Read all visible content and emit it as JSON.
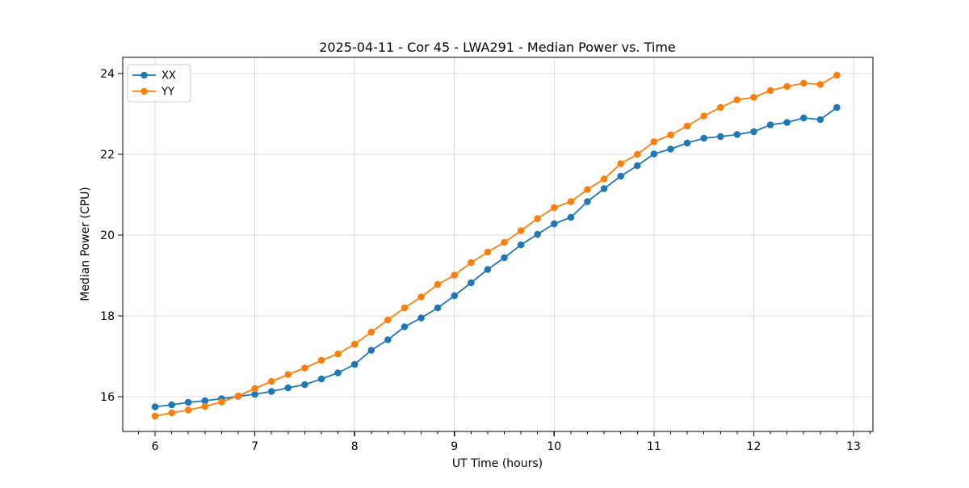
{
  "chart_data": {
    "type": "line",
    "title": "2025-04-11 - Cor 45 - LWA291 - Median Power vs. Time",
    "xlabel": "UT Time (hours)",
    "ylabel": "Median Power (CPU)",
    "legend_position": "upper-left",
    "grid": true,
    "marker": "circle",
    "xlim": [
      5.676,
      13.194
    ],
    "ylim": [
      15.14,
      24.4
    ],
    "x_major_ticks": [
      6,
      7,
      8,
      9,
      10,
      11,
      12,
      13
    ],
    "x_minor_step_hours": 0.16667,
    "y_major_ticks": [
      16,
      18,
      20,
      22,
      24
    ],
    "x": [
      6,
      6.167,
      6.333,
      6.5,
      6.667,
      6.833,
      7,
      7.167,
      7.333,
      7.5,
      7.667,
      7.833,
      8,
      8.167,
      8.333,
      8.5,
      8.667,
      8.833,
      9,
      9.167,
      9.333,
      9.5,
      9.667,
      9.833,
      10,
      10.167,
      10.333,
      10.5,
      10.667,
      10.833,
      11,
      11.167,
      11.333,
      11.5,
      11.667,
      11.833,
      12,
      12.167,
      12.333,
      12.5,
      12.667,
      12.833
    ],
    "series": [
      {
        "name": "XX",
        "color": "#1f77b4",
        "values": [
          15.75,
          15.8,
          15.86,
          15.9,
          15.95,
          16.01,
          16.06,
          16.13,
          16.22,
          16.3,
          16.44,
          16.59,
          16.8,
          17.15,
          17.41,
          17.73,
          17.95,
          18.2,
          18.5,
          18.82,
          19.15,
          19.44,
          19.76,
          20.02,
          20.28,
          20.44,
          20.83,
          21.15,
          21.46,
          21.72,
          22.01,
          22.13,
          22.28,
          22.4,
          22.44,
          22.49,
          22.56,
          22.73,
          22.79,
          22.9,
          22.86,
          23.16
        ]
      },
      {
        "name": "YY",
        "color": "#ff7f0e",
        "values": [
          15.52,
          15.6,
          15.67,
          15.76,
          15.87,
          16.02,
          16.2,
          16.38,
          16.55,
          16.71,
          16.9,
          17.06,
          17.3,
          17.6,
          17.9,
          18.2,
          18.47,
          18.78,
          19.01,
          19.32,
          19.58,
          19.82,
          20.11,
          20.41,
          20.68,
          20.83,
          21.13,
          21.39,
          21.77,
          22.0,
          22.31,
          22.48,
          22.7,
          22.95,
          23.16,
          23.35,
          23.41,
          23.58,
          23.68,
          23.76,
          23.73,
          23.96
        ]
      }
    ]
  },
  "colors": {
    "grid": "#dddddd",
    "spine": "#000000",
    "tick": "#000000",
    "legend_border": "#cccccc",
    "legend_background": "#ffffff"
  }
}
